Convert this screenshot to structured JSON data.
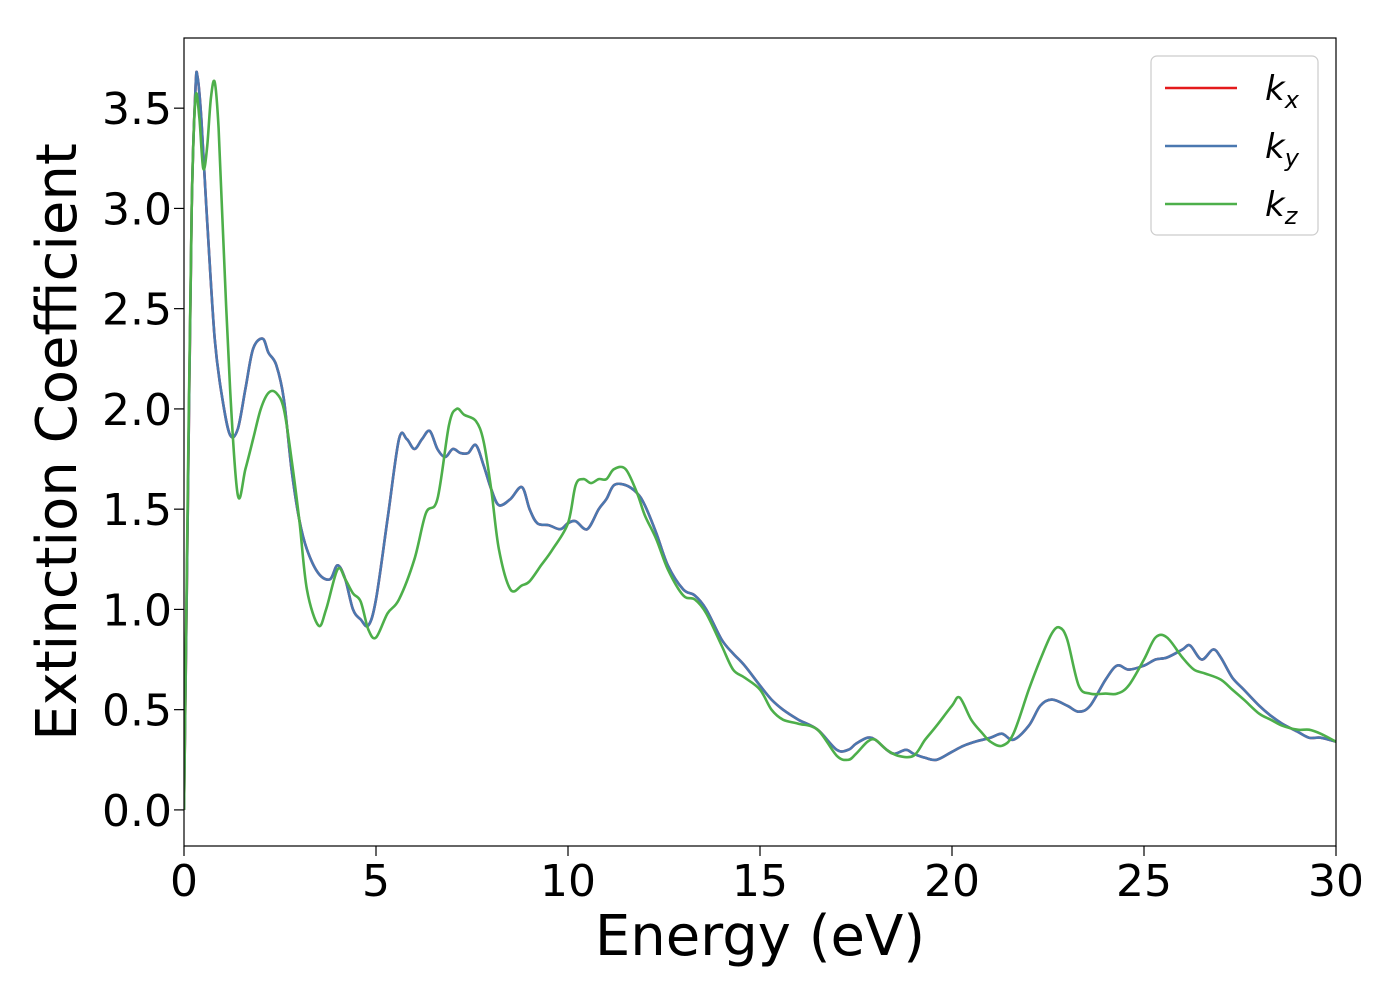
{
  "chart_data": {
    "type": "line",
    "xlabel": "Energy (eV)",
    "ylabel": "Extinction Coefficient",
    "xlim": [
      0,
      30
    ],
    "ylim": [
      -0.18,
      3.85
    ],
    "xticks": [
      0,
      5,
      10,
      15,
      20,
      25,
      30
    ],
    "xtick_labels": [
      "0",
      "5",
      "10",
      "15",
      "20",
      "25",
      "30"
    ],
    "yticks": [
      0.0,
      0.5,
      1.0,
      1.5,
      2.0,
      2.5,
      3.0,
      3.5
    ],
    "ytick_labels": [
      "0.0",
      "0.5",
      "1.0",
      "1.5",
      "2.0",
      "2.5",
      "3.0",
      "3.5"
    ],
    "grid": false,
    "legend_position": "top-right",
    "series": [
      {
        "name": "k",
        "sub": "x",
        "color": "#e41a1c",
        "x": [
          0,
          0.1,
          0.2,
          0.3,
          0.35,
          0.45,
          0.6,
          0.8,
          1.0,
          1.2,
          1.4,
          1.6,
          1.8,
          2.05,
          2.2,
          2.4,
          2.6,
          2.8,
          3.0,
          3.2,
          3.5,
          3.8,
          4.0,
          4.2,
          4.4,
          4.6,
          4.8,
          5.0,
          5.3,
          5.6,
          5.8,
          6.0,
          6.2,
          6.4,
          6.6,
          6.8,
          7.0,
          7.2,
          7.4,
          7.6,
          7.8,
          8.0,
          8.2,
          8.5,
          8.8,
          9.0,
          9.2,
          9.5,
          9.8,
          10.0,
          10.2,
          10.5,
          10.8,
          11.0,
          11.2,
          11.5,
          11.8,
          12.0,
          12.3,
          12.6,
          13.0,
          13.3,
          13.6,
          14.0,
          14.3,
          14.6,
          15.0,
          15.3,
          15.6,
          16.0,
          16.5,
          17.0,
          17.3,
          17.5,
          17.8,
          18.0,
          18.3,
          18.5,
          18.8,
          19.0,
          19.3,
          19.6,
          20.0,
          20.3,
          20.6,
          21.0,
          21.3,
          21.6,
          22.0,
          22.3,
          22.6,
          23.0,
          23.3,
          23.6,
          24.0,
          24.3,
          24.6,
          25.0,
          25.3,
          25.6,
          26.0,
          26.2,
          26.5,
          26.8,
          27.0,
          27.3,
          27.6,
          28.0,
          28.3,
          28.6,
          29.0,
          29.3,
          29.6,
          30.0
        ],
        "y": [
          0.0,
          1.5,
          3.0,
          3.6,
          3.66,
          3.45,
          2.95,
          2.35,
          2.05,
          1.87,
          1.9,
          2.1,
          2.3,
          2.35,
          2.28,
          2.22,
          2.05,
          1.7,
          1.45,
          1.3,
          1.18,
          1.15,
          1.22,
          1.15,
          1.0,
          0.95,
          0.92,
          1.05,
          1.45,
          1.85,
          1.85,
          1.8,
          1.85,
          1.89,
          1.8,
          1.76,
          1.8,
          1.78,
          1.78,
          1.82,
          1.72,
          1.6,
          1.52,
          1.55,
          1.61,
          1.5,
          1.43,
          1.42,
          1.4,
          1.43,
          1.44,
          1.4,
          1.5,
          1.55,
          1.62,
          1.62,
          1.58,
          1.52,
          1.38,
          1.22,
          1.1,
          1.07,
          1.0,
          0.85,
          0.78,
          0.72,
          0.62,
          0.55,
          0.5,
          0.45,
          0.4,
          0.3,
          0.3,
          0.33,
          0.36,
          0.35,
          0.3,
          0.28,
          0.3,
          0.28,
          0.26,
          0.25,
          0.29,
          0.32,
          0.34,
          0.36,
          0.38,
          0.35,
          0.42,
          0.52,
          0.55,
          0.52,
          0.49,
          0.52,
          0.65,
          0.72,
          0.7,
          0.72,
          0.75,
          0.76,
          0.8,
          0.82,
          0.75,
          0.8,
          0.76,
          0.66,
          0.6,
          0.52,
          0.47,
          0.43,
          0.39,
          0.36,
          0.36,
          0.34
        ]
      },
      {
        "name": "k",
        "sub": "y",
        "color": "#4a78b0",
        "x": [
          0,
          0.1,
          0.2,
          0.3,
          0.35,
          0.45,
          0.6,
          0.8,
          1.0,
          1.2,
          1.4,
          1.6,
          1.8,
          2.05,
          2.2,
          2.4,
          2.6,
          2.8,
          3.0,
          3.2,
          3.5,
          3.8,
          4.0,
          4.2,
          4.4,
          4.6,
          4.8,
          5.0,
          5.3,
          5.6,
          5.8,
          6.0,
          6.2,
          6.4,
          6.6,
          6.8,
          7.0,
          7.2,
          7.4,
          7.6,
          7.8,
          8.0,
          8.2,
          8.5,
          8.8,
          9.0,
          9.2,
          9.5,
          9.8,
          10.0,
          10.2,
          10.5,
          10.8,
          11.0,
          11.2,
          11.5,
          11.8,
          12.0,
          12.3,
          12.6,
          13.0,
          13.3,
          13.6,
          14.0,
          14.3,
          14.6,
          15.0,
          15.3,
          15.6,
          16.0,
          16.5,
          17.0,
          17.3,
          17.5,
          17.8,
          18.0,
          18.3,
          18.5,
          18.8,
          19.0,
          19.3,
          19.6,
          20.0,
          20.3,
          20.6,
          21.0,
          21.3,
          21.6,
          22.0,
          22.3,
          22.6,
          23.0,
          23.3,
          23.6,
          24.0,
          24.3,
          24.6,
          25.0,
          25.3,
          25.6,
          26.0,
          26.2,
          26.5,
          26.8,
          27.0,
          27.3,
          27.6,
          28.0,
          28.3,
          28.6,
          29.0,
          29.3,
          29.6,
          30.0
        ],
        "y": [
          0.0,
          1.5,
          3.0,
          3.6,
          3.66,
          3.45,
          2.95,
          2.35,
          2.05,
          1.87,
          1.9,
          2.1,
          2.3,
          2.35,
          2.28,
          2.22,
          2.05,
          1.7,
          1.45,
          1.3,
          1.18,
          1.15,
          1.22,
          1.15,
          1.0,
          0.95,
          0.92,
          1.05,
          1.45,
          1.85,
          1.85,
          1.8,
          1.85,
          1.89,
          1.8,
          1.76,
          1.8,
          1.78,
          1.78,
          1.82,
          1.72,
          1.6,
          1.52,
          1.55,
          1.61,
          1.5,
          1.43,
          1.42,
          1.4,
          1.43,
          1.44,
          1.4,
          1.5,
          1.55,
          1.62,
          1.62,
          1.58,
          1.52,
          1.38,
          1.22,
          1.1,
          1.07,
          1.0,
          0.85,
          0.78,
          0.72,
          0.62,
          0.55,
          0.5,
          0.45,
          0.4,
          0.3,
          0.3,
          0.33,
          0.36,
          0.35,
          0.3,
          0.28,
          0.3,
          0.28,
          0.26,
          0.25,
          0.29,
          0.32,
          0.34,
          0.36,
          0.38,
          0.35,
          0.42,
          0.52,
          0.55,
          0.52,
          0.49,
          0.52,
          0.65,
          0.72,
          0.7,
          0.72,
          0.75,
          0.76,
          0.8,
          0.82,
          0.75,
          0.8,
          0.76,
          0.66,
          0.6,
          0.52,
          0.47,
          0.43,
          0.39,
          0.36,
          0.36,
          0.34
        ]
      },
      {
        "name": "k",
        "sub": "z",
        "color": "#4daf4a",
        "x": [
          0,
          0.1,
          0.2,
          0.3,
          0.4,
          0.5,
          0.6,
          0.7,
          0.8,
          0.9,
          1.0,
          1.2,
          1.4,
          1.6,
          1.8,
          2.0,
          2.2,
          2.4,
          2.6,
          2.8,
          3.0,
          3.2,
          3.5,
          3.7,
          4.0,
          4.2,
          4.4,
          4.6,
          4.8,
          5.0,
          5.3,
          5.6,
          6.0,
          6.3,
          6.6,
          6.9,
          7.1,
          7.3,
          7.6,
          7.8,
          8.0,
          8.2,
          8.5,
          8.8,
          9.0,
          9.3,
          9.6,
          10.0,
          10.2,
          10.4,
          10.6,
          10.8,
          11.0,
          11.2,
          11.5,
          11.8,
          12.0,
          12.3,
          12.6,
          13.0,
          13.3,
          13.6,
          14.0,
          14.3,
          14.6,
          15.0,
          15.3,
          15.6,
          16.0,
          16.5,
          17.0,
          17.3,
          17.5,
          17.8,
          18.0,
          18.3,
          18.6,
          19.0,
          19.3,
          19.6,
          20.0,
          20.2,
          20.5,
          20.8,
          21.0,
          21.3,
          21.6,
          22.0,
          22.3,
          22.6,
          22.8,
          23.0,
          23.3,
          23.6,
          24.0,
          24.3,
          24.6,
          25.0,
          25.3,
          25.6,
          26.0,
          26.3,
          26.6,
          27.0,
          27.3,
          27.6,
          28.0,
          28.3,
          28.6,
          29.0,
          29.3,
          29.6,
          30.0
        ],
        "y": [
          0.0,
          1.6,
          3.0,
          3.55,
          3.45,
          3.2,
          3.3,
          3.55,
          3.63,
          3.4,
          2.95,
          2.1,
          1.57,
          1.7,
          1.85,
          2.0,
          2.08,
          2.08,
          2.0,
          1.75,
          1.45,
          1.1,
          0.92,
          1.0,
          1.2,
          1.15,
          1.08,
          1.04,
          0.9,
          0.86,
          0.98,
          1.05,
          1.25,
          1.48,
          1.55,
          1.92,
          2.0,
          1.97,
          1.94,
          1.84,
          1.6,
          1.3,
          1.1,
          1.12,
          1.14,
          1.22,
          1.3,
          1.43,
          1.62,
          1.65,
          1.63,
          1.65,
          1.65,
          1.7,
          1.7,
          1.58,
          1.47,
          1.35,
          1.2,
          1.07,
          1.05,
          0.98,
          0.82,
          0.7,
          0.66,
          0.6,
          0.5,
          0.45,
          0.43,
          0.4,
          0.27,
          0.25,
          0.28,
          0.34,
          0.35,
          0.3,
          0.27,
          0.27,
          0.35,
          0.42,
          0.52,
          0.56,
          0.45,
          0.38,
          0.34,
          0.32,
          0.38,
          0.6,
          0.75,
          0.88,
          0.91,
          0.85,
          0.62,
          0.58,
          0.58,
          0.58,
          0.62,
          0.75,
          0.86,
          0.86,
          0.76,
          0.7,
          0.68,
          0.65,
          0.6,
          0.55,
          0.48,
          0.45,
          0.42,
          0.4,
          0.4,
          0.38,
          0.34
        ]
      }
    ]
  }
}
